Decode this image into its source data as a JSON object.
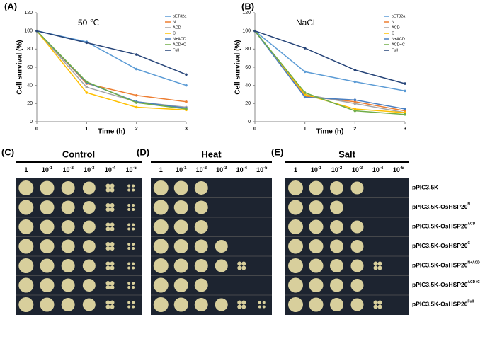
{
  "chart_data": [
    {
      "type": "line",
      "panel_label": "(A)",
      "annotation": "50 ℃",
      "xlabel": "Time (h)",
      "ylabel": "Cell survival (%)",
      "x": [
        0,
        1,
        2,
        3
      ],
      "xlim": [
        0,
        3
      ],
      "xticks": [
        0,
        1,
        2,
        3
      ],
      "ylim": [
        0,
        120
      ],
      "yticks": [
        0,
        20,
        40,
        60,
        80,
        100,
        120
      ],
      "series": [
        {
          "name": "pET32a",
          "color": "#5b9bd5",
          "values": [
            100,
            88,
            58,
            40
          ]
        },
        {
          "name": "N",
          "color": "#ed7d31",
          "values": [
            100,
            42,
            29,
            22
          ]
        },
        {
          "name": "ACD",
          "color": "#a5a5a5",
          "values": [
            100,
            38,
            22,
            16
          ]
        },
        {
          "name": "C",
          "color": "#ffc000",
          "values": [
            100,
            32,
            16,
            13
          ]
        },
        {
          "name": "N+ACD",
          "color": "#4a7fc1",
          "values": [
            100,
            43,
            22,
            15
          ]
        },
        {
          "name": "ACD+C",
          "color": "#70ad47",
          "values": [
            100,
            44,
            21,
            14
          ]
        },
        {
          "name": "Full",
          "color": "#264478",
          "values": [
            100,
            87,
            74,
            52
          ]
        }
      ]
    },
    {
      "type": "line",
      "panel_label": "(B)",
      "annotation": "NaCl",
      "xlabel": "Time (h)",
      "ylabel": "Cell survival (%)",
      "x": [
        0,
        1,
        2,
        3
      ],
      "xlim": [
        0,
        3
      ],
      "xticks": [
        0,
        1,
        2,
        3
      ],
      "ylim": [
        0,
        120
      ],
      "yticks": [
        0,
        20,
        40,
        60,
        80,
        100,
        120
      ],
      "series": [
        {
          "name": "pET32a",
          "color": "#5b9bd5",
          "values": [
            100,
            55,
            44,
            34
          ]
        },
        {
          "name": "N",
          "color": "#ed7d31",
          "values": [
            100,
            28,
            22,
            12
          ]
        },
        {
          "name": "ACD",
          "color": "#a5a5a5",
          "values": [
            100,
            30,
            20,
            10
          ]
        },
        {
          "name": "C",
          "color": "#ffc000",
          "values": [
            100,
            30,
            14,
            10
          ]
        },
        {
          "name": "N+ACD",
          "color": "#4a7fc1",
          "values": [
            100,
            27,
            24,
            14
          ]
        },
        {
          "name": "ACD+C",
          "color": "#70ad47",
          "values": [
            100,
            32,
            12,
            8
          ]
        },
        {
          "name": "Full",
          "color": "#264478",
          "values": [
            100,
            81,
            57,
            42
          ]
        }
      ]
    }
  ],
  "spot_assays": {
    "panels": [
      {
        "label": "(C)",
        "title": "Control"
      },
      {
        "label": "(D)",
        "title": "Heat"
      },
      {
        "label": "(E)",
        "title": "Salt"
      }
    ],
    "dilutions": [
      {
        "base": "1"
      },
      {
        "base": "10",
        "exp": "-1"
      },
      {
        "base": "10",
        "exp": "-2"
      },
      {
        "base": "10",
        "exp": "-3"
      },
      {
        "base": "10",
        "exp": "-4"
      },
      {
        "base": "10",
        "exp": "-5"
      }
    ],
    "strains": [
      {
        "base": "pPIC3.5K"
      },
      {
        "base": "pPIC3.5K-OsHSP20",
        "sup": "N"
      },
      {
        "base": "pPIC3.5K-OsHSP20",
        "sup": "ACD"
      },
      {
        "base": "pPIC3.5K-OsHSP20",
        "sup": "C"
      },
      {
        "base": "pPIC3.5K-OsHSP20",
        "sup": "N+ACD"
      },
      {
        "base": "pPIC3.5K-OsHSP20",
        "sup": "ACD+C"
      },
      {
        "base": "pPIC3.5K-OsHSP20",
        "sup": "Full"
      }
    ]
  }
}
